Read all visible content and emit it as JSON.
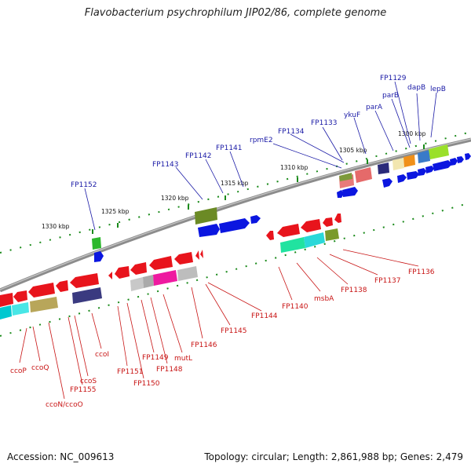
{
  "title": "Flavobacterium psychrophilum JIP02/86, complete genome",
  "footer": {
    "accession": "Accession: NC_009613",
    "stats": "Topology: circular; Length: 2,861,988 bp; Genes: 2,479"
  },
  "scale_labels": [
    "1330 kbp",
    "1325 kbp",
    "1320 kbp",
    "1315 kbp",
    "1310 kbp",
    "1305 kbp",
    "1300 kbp"
  ],
  "top_genes": [
    "FP1152",
    "FP1143",
    "FP1142",
    "FP1141",
    "rpmE2",
    "FP1134",
    "FP1133",
    "ykuF",
    "parA",
    "parB",
    "FP1129",
    "dapB",
    "lepB"
  ],
  "bottom_genes": [
    "ccoP",
    "ccoQ",
    "ccoN/ccoO",
    "FP1155",
    "ccoS",
    "ccoI",
    "FP1151",
    "FP1150",
    "FP1149",
    "FP1148",
    "mutL",
    "FP1146",
    "FP1145",
    "FP1144",
    "FP1140",
    "msbA",
    "FP1138",
    "FP1137",
    "FP1136"
  ],
  "colors": {
    "forward_gene": "#0b16e0",
    "reverse_gene": "#e8141c",
    "backbone": "#8c8c8c",
    "tick": "#1a8a1a",
    "top_label": "#1a1aa6",
    "bottom_label": "#c81414"
  }
}
